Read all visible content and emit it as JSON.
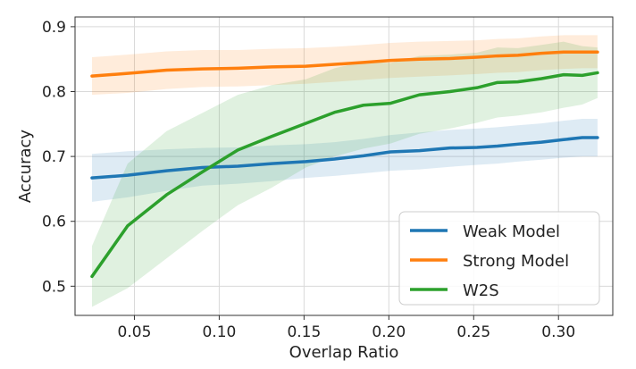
{
  "chart_data": {
    "type": "line",
    "title": "",
    "xlabel": "Overlap Ratio",
    "ylabel": "Accuracy",
    "xlim": [
      0.015,
      0.332
    ],
    "ylim": [
      0.455,
      0.915
    ],
    "xticks": [
      0.05,
      0.1,
      0.15,
      0.2,
      0.25,
      0.3
    ],
    "xtick_labels": [
      "0.05",
      "0.10",
      "0.15",
      "0.20",
      "0.25",
      "0.30"
    ],
    "yticks": [
      0.5,
      0.6,
      0.7,
      0.8,
      0.9
    ],
    "ytick_labels": [
      "0.5",
      "0.6",
      "0.7",
      "0.8",
      "0.9"
    ],
    "grid": true,
    "legend_position": "lower-right",
    "x": [
      0.025,
      0.046,
      0.069,
      0.09,
      0.111,
      0.131,
      0.151,
      0.168,
      0.185,
      0.201,
      0.218,
      0.236,
      0.252,
      0.264,
      0.276,
      0.29,
      0.303,
      0.314,
      0.323
    ],
    "series": [
      {
        "name": "Weak Model",
        "color": "#1f77b4",
        "values": [
          0.667,
          0.671,
          0.678,
          0.683,
          0.685,
          0.689,
          0.692,
          0.696,
          0.701,
          0.707,
          0.709,
          0.713,
          0.714,
          0.716,
          0.719,
          0.722,
          0.726,
          0.729,
          0.729
        ],
        "lower": [
          0.63,
          0.637,
          0.647,
          0.655,
          0.658,
          0.662,
          0.667,
          0.67,
          0.674,
          0.678,
          0.68,
          0.684,
          0.687,
          0.689,
          0.692,
          0.695,
          0.698,
          0.7,
          0.7
        ],
        "upper": [
          0.704,
          0.708,
          0.711,
          0.713,
          0.714,
          0.717,
          0.719,
          0.722,
          0.727,
          0.733,
          0.737,
          0.741,
          0.743,
          0.745,
          0.748,
          0.751,
          0.755,
          0.758,
          0.758
        ]
      },
      {
        "name": "Strong Model",
        "color": "#ff7f0e",
        "values": [
          0.824,
          0.828,
          0.833,
          0.835,
          0.836,
          0.838,
          0.839,
          0.842,
          0.845,
          0.848,
          0.85,
          0.851,
          0.853,
          0.855,
          0.856,
          0.859,
          0.861,
          0.861,
          0.861
        ],
        "lower": [
          0.795,
          0.798,
          0.804,
          0.807,
          0.808,
          0.81,
          0.812,
          0.815,
          0.818,
          0.821,
          0.823,
          0.825,
          0.827,
          0.829,
          0.83,
          0.833,
          0.835,
          0.836,
          0.836
        ],
        "upper": [
          0.853,
          0.857,
          0.862,
          0.864,
          0.864,
          0.866,
          0.867,
          0.869,
          0.872,
          0.875,
          0.877,
          0.878,
          0.879,
          0.881,
          0.882,
          0.885,
          0.887,
          0.887,
          0.887
        ]
      },
      {
        "name": "W2S",
        "color": "#2ca02c",
        "values": [
          0.515,
          0.593,
          0.641,
          0.676,
          0.71,
          0.731,
          0.751,
          0.768,
          0.779,
          0.782,
          0.795,
          0.8,
          0.806,
          0.814,
          0.815,
          0.82,
          0.826,
          0.825,
          0.829
        ],
        "lower": [
          0.468,
          0.497,
          0.543,
          0.585,
          0.625,
          0.652,
          0.683,
          0.7,
          0.712,
          0.72,
          0.735,
          0.743,
          0.752,
          0.76,
          0.763,
          0.768,
          0.775,
          0.78,
          0.79
        ],
        "upper": [
          0.562,
          0.689,
          0.739,
          0.767,
          0.795,
          0.81,
          0.819,
          0.836,
          0.846,
          0.844,
          0.855,
          0.857,
          0.86,
          0.868,
          0.867,
          0.872,
          0.877,
          0.87,
          0.868
        ]
      }
    ]
  }
}
